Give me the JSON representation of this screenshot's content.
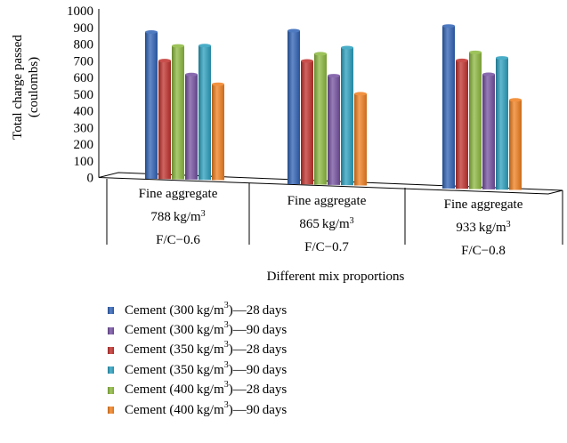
{
  "chart_data": {
    "type": "bar",
    "ylabel": "Total charge passed (coulombs)",
    "ylabel_lines": [
      "Total charge passed",
      "(coulombs)"
    ],
    "xlabel": "Different mix proportions",
    "ylim": [
      0,
      1000
    ],
    "yticks": [
      "1000",
      "900",
      "800",
      "700",
      "600",
      "500",
      "400",
      "300",
      "200",
      "100",
      "0"
    ],
    "categories": [
      "Fine aggregate 788 kg/m3 F/C−0.6",
      "Fine aggregate 865 kg/m3 F/C−0.7",
      "Fine aggregate 933 kg/m3 F/C−0.8"
    ],
    "category_lines": [
      {
        "l1": "Fine aggregate",
        "l2": "788 kg/m",
        "sup": "3",
        "l3": "F/C−0.6"
      },
      {
        "l1": "Fine aggregate",
        "l2": "865 kg/m",
        "sup": "3",
        "l3": "F/C−0.7"
      },
      {
        "l1": "Fine aggregate",
        "l2": "933 kg/m",
        "sup": "3",
        "l3": "F/C−0.8"
      }
    ],
    "series": [
      {
        "name": "Cement (300 kg/m3)—28 days",
        "color": "#2f62b5",
        "values": [
          880,
          920,
          975
        ]
      },
      {
        "name": "Cement (350 kg/m3)—28 days",
        "color": "#c0302c",
        "values": [
          710,
          740,
          770
        ]
      },
      {
        "name": "Cement (400 kg/m3)—28 days",
        "color": "#8cb83e",
        "values": [
          800,
          785,
          820
        ]
      },
      {
        "name": "Cement (300 kg/m3)—90 days",
        "color": "#7450a0",
        "values": [
          630,
          655,
          690
        ]
      },
      {
        "name": "Cement (350 kg/m3)—90 days",
        "color": "#2a9fbd",
        "values": [
          805,
          825,
          790
        ]
      },
      {
        "name": "Cement (400 kg/m3)—90 days",
        "color": "#f07f1e",
        "values": [
          575,
          550,
          540
        ]
      }
    ],
    "legend": [
      {
        "pre": "Cement (300 kg/m",
        "sup": "3",
        "post": ")—28 days",
        "color": "#2f62b5"
      },
      {
        "pre": "Cement (300 kg/m",
        "sup": "3",
        "post": ")—90 days",
        "color": "#7450a0"
      },
      {
        "pre": "Cement (350 kg/m",
        "sup": "3",
        "post": ")—28 days",
        "color": "#c0302c"
      },
      {
        "pre": "Cement (350 kg/m",
        "sup": "3",
        "post": ")—90 days",
        "color": "#2a9fbd"
      },
      {
        "pre": "Cement (400 kg/m",
        "sup": "3",
        "post": ")—28 days",
        "color": "#8cb83e"
      },
      {
        "pre": "Cement (400 kg/m",
        "sup": "3",
        "post": ")—90 days",
        "color": "#f07f1e"
      }
    ],
    "legend_position": "bottom",
    "grid": false
  }
}
